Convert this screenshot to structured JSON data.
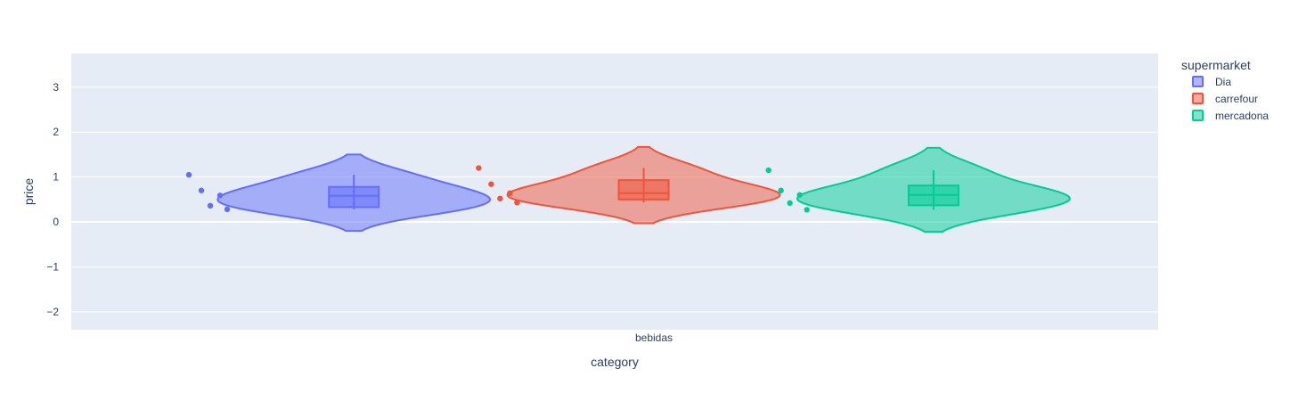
{
  "chart_data": {
    "type": "violin",
    "xlabel": "category",
    "ylabel": "price",
    "categories": [
      "bebidas"
    ],
    "ylim": [
      -2.4,
      3.75
    ],
    "yticks": [
      -2,
      -1,
      0,
      1,
      2,
      3
    ],
    "ytick_labels": [
      "−2",
      "−1",
      "0",
      "1",
      "2",
      "3"
    ],
    "grid": true,
    "legend": {
      "title": "supermarket",
      "placement": "right"
    },
    "series": [
      {
        "name": "Dia",
        "color": "#636efa",
        "points": [
          1.05,
          0.7,
          0.36,
          0.59,
          0.28
        ],
        "box": {
          "q1": 0.33,
          "median": 0.58,
          "q3": 0.78,
          "lower_whisker": 0.28,
          "upper_whisker": 1.05
        },
        "violin_range": [
          -0.2,
          1.5
        ]
      },
      {
        "name": "carrefour",
        "color": "#ef553b",
        "points": [
          1.2,
          0.84,
          0.52,
          0.64,
          0.43
        ],
        "box": {
          "q1": 0.5,
          "median": 0.64,
          "q3": 0.93,
          "lower_whisker": 0.43,
          "upper_whisker": 1.2
        },
        "violin_range": [
          -0.03,
          1.67
        ]
      },
      {
        "name": "mercadona",
        "color": "#00cc96",
        "points": [
          1.15,
          0.7,
          0.42,
          0.6,
          0.27
        ],
        "box": {
          "q1": 0.37,
          "median": 0.6,
          "q3": 0.81,
          "lower_whisker": 0.27,
          "upper_whisker": 1.15
        },
        "violin_range": [
          -0.22,
          1.65
        ]
      }
    ]
  }
}
